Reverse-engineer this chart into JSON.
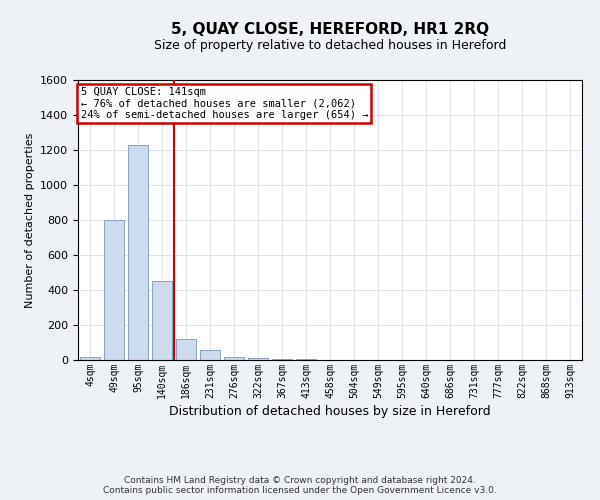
{
  "title": "5, QUAY CLOSE, HEREFORD, HR1 2RQ",
  "subtitle": "Size of property relative to detached houses in Hereford",
  "xlabel": "Distribution of detached houses by size in Hereford",
  "ylabel": "Number of detached properties",
  "footer_line1": "Contains HM Land Registry data © Crown copyright and database right 2024.",
  "footer_line2": "Contains public sector information licensed under the Open Government Licence v3.0.",
  "bar_labels": [
    "4sqm",
    "49sqm",
    "95sqm",
    "140sqm",
    "186sqm",
    "231sqm",
    "276sqm",
    "322sqm",
    "367sqm",
    "413sqm",
    "458sqm",
    "504sqm",
    "549sqm",
    "595sqm",
    "640sqm",
    "686sqm",
    "731sqm",
    "777sqm",
    "822sqm",
    "868sqm",
    "913sqm"
  ],
  "bar_values": [
    20,
    800,
    1230,
    450,
    120,
    55,
    20,
    12,
    5,
    3,
    0,
    0,
    0,
    0,
    0,
    0,
    0,
    0,
    0,
    0,
    0
  ],
  "bar_color": "#ccdcee",
  "bar_edge_color": "#7799bb",
  "grid_color": "#d8dde8",
  "annotation_line1": "5 QUAY CLOSE: 141sqm",
  "annotation_line2": "← 76% of detached houses are smaller (2,062)",
  "annotation_line3": "24% of semi-detached houses are larger (654) →",
  "annotation_box_color": "white",
  "annotation_box_edge_color": "#cc0000",
  "vline_color": "#cc0000",
  "ylim": [
    0,
    1600
  ],
  "yticks": [
    0,
    200,
    400,
    600,
    800,
    1000,
    1200,
    1400,
    1600
  ],
  "background_color": "#eef2f7",
  "plot_bg_color": "white",
  "title_fontsize": 11,
  "subtitle_fontsize": 9,
  "xlabel_fontsize": 9,
  "ylabel_fontsize": 8,
  "xtick_fontsize": 7,
  "ytick_fontsize": 8,
  "annotation_fontsize": 7.5,
  "footer_fontsize": 6.5
}
